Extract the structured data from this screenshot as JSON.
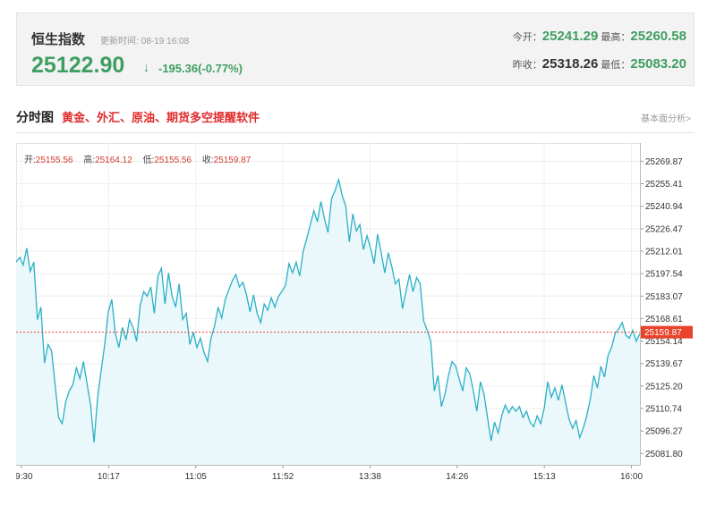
{
  "quote": {
    "name": "恒生指数",
    "time_label": "更新时间:",
    "time_value": "08-19 16:08",
    "price": "25122.90",
    "arrow": "↓",
    "change": "-195.36(-0.77%)",
    "open_label": "今开：",
    "open": "25241.29",
    "high_label": "最高：",
    "high": "25260.58",
    "prev_close_label": "昨收：",
    "prev_close": "25318.26",
    "low_label": "最低：",
    "low": "25083.20",
    "down_color": "#3f9e62"
  },
  "section": {
    "title": "分时图",
    "promo": "黄金、外汇、原油、期货多空提醒软件",
    "right_link": "基本面分析>"
  },
  "ohlc": {
    "open_label": "开:",
    "open": "25155.56",
    "high_label": "高:",
    "high": "25164.12",
    "low_label": "低:",
    "low": "25155.56",
    "close_label": "收:",
    "close": "25159.87"
  },
  "chart_data": {
    "type": "area",
    "x_ticks": [
      "09:30",
      "10:17",
      "11:05",
      "11:52",
      "13:38",
      "14:26",
      "15:13",
      "16:00"
    ],
    "y_ticks": [
      "25269.87",
      "25255.41",
      "25240.94",
      "25226.47",
      "25212.01",
      "25197.54",
      "25183.07",
      "25168.61",
      "25154.14",
      "25139.67",
      "25125.20",
      "25110.74",
      "25096.27",
      "25081.80"
    ],
    "ylim": [
      25074.5,
      25277
    ],
    "current_value": 25159.87,
    "current_label": "25159.87",
    "line_color": "#2ab0c6",
    "fill_color": "#eaf7fb",
    "current_line_color": "#e8442c",
    "grid": true,
    "series": [
      {
        "values": [
          25205,
          25208,
          25203,
          25214,
          25199,
          25205,
          25168,
          25176,
          25140,
          25152,
          25148,
          25126,
          25105,
          25101,
          25115,
          25122,
          25126,
          25137,
          25130,
          25141,
          25127,
          25113,
          25089,
          25118,
          25135,
          25152,
          25173,
          25181,
          25159,
          25150,
          25163,
          25155,
          25168,
          25163,
          25154,
          25177,
          25186,
          25183,
          25189,
          25172,
          25196,
          25201,
          25178,
          25198,
          25183,
          25176,
          25191,
          25168,
          25172,
          25152,
          25160,
          25150,
          25156,
          25147,
          25141,
          25156,
          25164,
          25176,
          25169,
          25181,
          25187,
          25193,
          25197,
          25189,
          25192,
          25184,
          25173,
          25184,
          25172,
          25166,
          25178,
          25174,
          25182,
          25176,
          25183,
          25186,
          25190,
          25204,
          25198,
          25205,
          25196,
          25212,
          25220,
          25229,
          25238,
          25231,
          25244,
          25233,
          25224,
          25246,
          25251,
          25258,
          25248,
          25241,
          25218,
          25236,
          25225,
          25229,
          25213,
          25222,
          25214,
          25204,
          25223,
          25211,
          25198,
          25211,
          25202,
          25191,
          25194,
          25175,
          25186,
          25197,
          25186,
          25195,
          25191,
          25167,
          25161,
          25154,
          25122,
          25132,
          25112,
          25120,
          25132,
          25141,
          25138,
          25130,
          25122,
          25137,
          25133,
          25122,
          25109,
          25128,
          25120,
          25105,
          25090,
          25102,
          25095,
          25106,
          25113,
          25108,
          25112,
          25109,
          25112,
          25105,
          25109,
          25102,
          25099,
          25106,
          25101,
          25111,
          25128,
          25118,
          25124,
          25116,
          25126,
          25115,
          25104,
          25098,
          25103,
          25092,
          25098,
          25106,
          25117,
          25132,
          25124,
          25138,
          25131,
          25145,
          25150,
          25159,
          25162,
          25166,
          25158,
          25156,
          25161,
          25154,
          25159
        ]
      }
    ]
  }
}
